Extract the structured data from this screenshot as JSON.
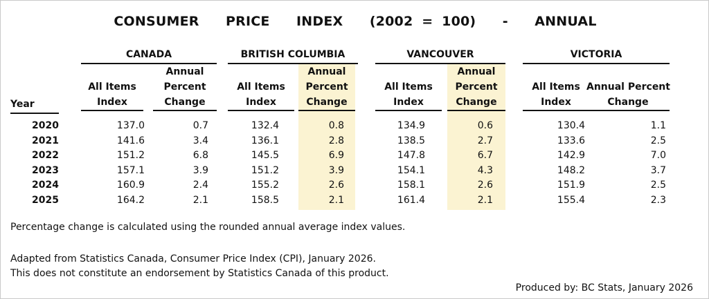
{
  "title": "CONSUMER   PRICE   INDEX   (2002 = 100)   -   ANNUAL",
  "year_label": "Year",
  "regions": [
    {
      "name": "CANADA",
      "col1": [
        "All Items",
        "Index"
      ],
      "col2": [
        "Annual",
        "Percent",
        "Change"
      ],
      "highlight": false
    },
    {
      "name": "BRITISH COLUMBIA",
      "col1": [
        "All Items",
        "Index"
      ],
      "col2": [
        "Annual",
        "Percent",
        "Change"
      ],
      "highlight": true
    },
    {
      "name": "VANCOUVER",
      "col1": [
        "All Items",
        "Index"
      ],
      "col2": [
        "Annual",
        "Percent",
        "Change"
      ],
      "highlight": true
    },
    {
      "name": "VICTORIA",
      "col1": [
        "All Items",
        "Index"
      ],
      "col2": [
        "Annual Percent",
        "Change"
      ],
      "highlight": false
    }
  ],
  "rows": [
    {
      "year": "2020",
      "values": [
        "137.0",
        "0.7",
        "132.4",
        "0.8",
        "134.9",
        "0.6",
        "130.4",
        "1.1"
      ]
    },
    {
      "year": "2021",
      "values": [
        "141.6",
        "3.4",
        "136.1",
        "2.8",
        "138.5",
        "2.7",
        "133.6",
        "2.5"
      ]
    },
    {
      "year": "2022",
      "values": [
        "151.2",
        "6.8",
        "145.5",
        "6.9",
        "147.8",
        "6.7",
        "142.9",
        "7.0"
      ]
    },
    {
      "year": "2023",
      "values": [
        "157.1",
        "3.9",
        "151.2",
        "3.9",
        "154.1",
        "4.3",
        "148.2",
        "3.7"
      ]
    },
    {
      "year": "2024",
      "values": [
        "160.9",
        "2.4",
        "155.2",
        "2.6",
        "158.1",
        "2.6",
        "151.9",
        "2.5"
      ]
    },
    {
      "year": "2025",
      "values": [
        "164.2",
        "2.1",
        "158.5",
        "2.1",
        "161.4",
        "2.1",
        "155.4",
        "2.3"
      ]
    }
  ],
  "notes": {
    "calc": "Percentage change is calculated using the rounded annual average index values.",
    "source_line1": "Adapted from Statistics Canada, Consumer Price Index (CPI), January 2026.",
    "source_line2": "This does not constitute an endorsement by Statistics Canada of this product.",
    "produced_by": "Produced by: BC Stats, January 2026"
  },
  "colors": {
    "highlight": "#fbf3d2",
    "text": "#111111",
    "rule": "#111111"
  }
}
